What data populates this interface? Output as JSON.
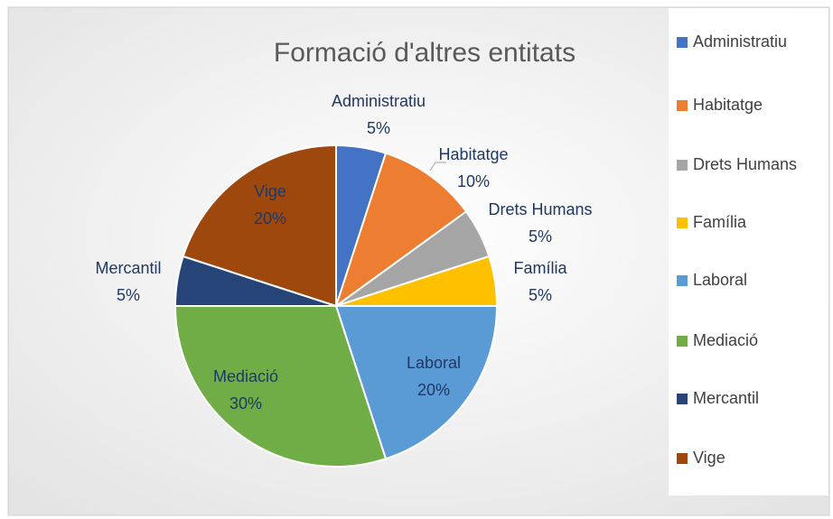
{
  "chart_data": {
    "type": "pie",
    "title": "Formació d'altres entitats",
    "categories": [
      "Administratiu",
      "Habitatge",
      "Drets Humans",
      "Família",
      "Laboral",
      "Mediació",
      "Mercantil",
      "Vige"
    ],
    "values": [
      5,
      10,
      5,
      5,
      20,
      30,
      5,
      20
    ],
    "value_labels": [
      "5%",
      "10%",
      "5%",
      "5%",
      "20%",
      "30%",
      "5%",
      "20%"
    ],
    "colors": [
      "#4472c4",
      "#ed7d31",
      "#a5a5a5",
      "#ffc000",
      "#5b9bd5",
      "#70ad47",
      "#264478",
      "#9e480e"
    ],
    "legend": "right"
  }
}
